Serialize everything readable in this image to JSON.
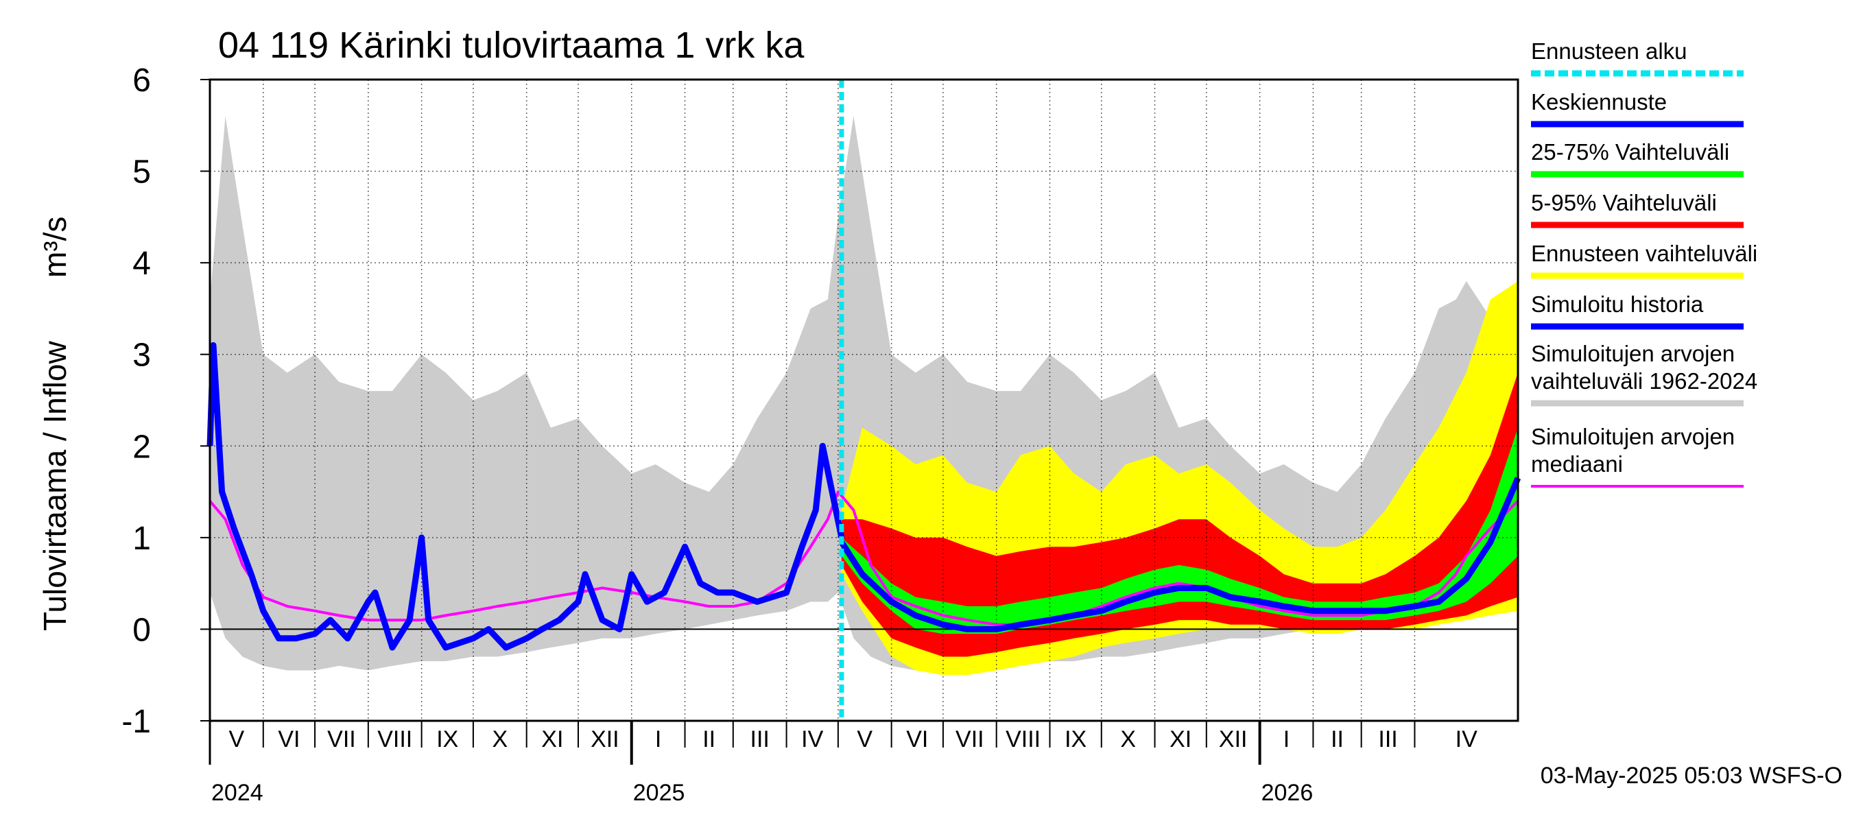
{
  "chart_data": {
    "type": "area",
    "title": "04 119 Kärinki tulovirtaama 1 vrk ka",
    "ylabel_left": "Tulovirtaama / Inflow",
    "ylabel_unit": "m³/s",
    "ylim": [
      -1,
      6
    ],
    "yticks": [
      "6",
      "5",
      "4",
      "3",
      "2",
      "1",
      "0",
      "-1"
    ],
    "grid": true,
    "legend_position": "right",
    "x_start": "2024-05-01",
    "x_end": "2026-05-31",
    "forecast_start": "2025-05-03",
    "months": [
      "V",
      "VI",
      "VII",
      "VIII",
      "IX",
      "X",
      "XI",
      "XII",
      "I",
      "II",
      "III",
      "IV",
      "V",
      "VI",
      "VII",
      "VIII",
      "IX",
      "X",
      "XI",
      "XII",
      "I",
      "II",
      "III",
      "IV"
    ],
    "years": [
      "2024",
      "2025",
      "2026"
    ],
    "legend": [
      {
        "label": "Ennusteen alku",
        "color": "#00e5ee"
      },
      {
        "label": "Keskiennuste",
        "color": "#0000ff"
      },
      {
        "label": "25-75% Vaihteluväli",
        "color": "#00ff00"
      },
      {
        "label": "5-95% Vaihteluväli",
        "color": "#ff0000"
      },
      {
        "label": "Ennusteen vaihteluväli",
        "color": "#ffff00"
      },
      {
        "label": "Simuloitu historia",
        "color": "#0000ff"
      },
      {
        "label": "Simuloitujen arvojen vaihteluväli 1962-2024",
        "color": "#cccccc"
      },
      {
        "label": "Simuloitujen arvojen mediaani",
        "color": "#ff00ff"
      }
    ],
    "series": [
      {
        "name": "Simuloitujen arvojen vaihteluväli 1962-2024",
        "x": [
          "2024-05-01",
          "2024-05-10",
          "2024-05-20",
          "2024-06-01",
          "2024-06-15",
          "2024-07-01",
          "2024-07-15",
          "2024-08-01",
          "2024-08-15",
          "2024-09-01",
          "2024-09-15",
          "2024-10-01",
          "2024-10-15",
          "2024-11-01",
          "2024-11-15",
          "2024-12-01",
          "2024-12-15",
          "2025-01-01",
          "2025-01-15",
          "2025-02-01",
          "2025-02-15",
          "2025-03-01",
          "2025-03-15",
          "2025-04-01",
          "2025-04-15",
          "2025-04-25",
          "2025-05-01",
          "2025-05-10",
          "2025-05-20",
          "2025-06-01",
          "2025-06-15",
          "2025-07-01",
          "2025-07-15",
          "2025-08-01",
          "2025-08-15",
          "2025-09-01",
          "2025-09-15",
          "2025-10-01",
          "2025-10-15",
          "2025-11-01",
          "2025-11-15",
          "2025-12-01",
          "2025-12-15",
          "2026-01-01",
          "2026-01-15",
          "2026-02-01",
          "2026-02-15",
          "2026-03-01",
          "2026-03-15",
          "2026-04-01",
          "2026-04-15",
          "2026-04-25",
          "2026-05-01",
          "2026-05-15",
          "2026-05-31"
        ],
        "low": [
          0.4,
          -0.1,
          -0.3,
          -0.4,
          -0.45,
          -0.45,
          -0.4,
          -0.45,
          -0.4,
          -0.35,
          -0.35,
          -0.3,
          -0.3,
          -0.25,
          -0.2,
          -0.15,
          -0.1,
          -0.1,
          -0.05,
          0.0,
          0.05,
          0.1,
          0.15,
          0.2,
          0.3,
          0.3,
          0.4,
          -0.1,
          -0.3,
          -0.4,
          -0.45,
          -0.45,
          -0.4,
          -0.45,
          -0.4,
          -0.35,
          -0.35,
          -0.3,
          -0.3,
          -0.25,
          -0.2,
          -0.15,
          -0.1,
          -0.1,
          -0.05,
          0.0,
          0.05,
          0.1,
          0.15,
          0.2,
          0.3,
          0.3,
          0.35,
          0.4,
          0.4
        ],
        "high": [
          3.6,
          5.6,
          4.4,
          3.0,
          2.8,
          3.0,
          2.7,
          2.6,
          2.6,
          3.0,
          2.8,
          2.5,
          2.6,
          2.8,
          2.2,
          2.3,
          2.0,
          1.7,
          1.8,
          1.6,
          1.5,
          1.8,
          2.3,
          2.8,
          3.5,
          3.6,
          4.5,
          5.6,
          4.4,
          3.0,
          2.8,
          3.0,
          2.7,
          2.6,
          2.6,
          3.0,
          2.8,
          2.5,
          2.6,
          2.8,
          2.2,
          2.3,
          2.0,
          1.7,
          1.8,
          1.6,
          1.5,
          1.8,
          2.3,
          2.8,
          3.5,
          3.6,
          3.8,
          3.4,
          2.6
        ]
      },
      {
        "name": "Ennusteen vaihteluväli",
        "x": [
          "2025-05-03",
          "2025-05-15",
          "2025-06-01",
          "2025-06-15",
          "2025-07-01",
          "2025-07-15",
          "2025-08-01",
          "2025-08-15",
          "2025-09-01",
          "2025-09-15",
          "2025-10-01",
          "2025-10-15",
          "2025-11-01",
          "2025-11-15",
          "2025-12-01",
          "2025-12-15",
          "2026-01-01",
          "2026-01-15",
          "2026-02-01",
          "2026-02-15",
          "2026-03-01",
          "2026-03-15",
          "2026-04-01",
          "2026-04-15",
          "2026-05-01",
          "2026-05-15",
          "2026-05-31"
        ],
        "low": [
          0.6,
          0.2,
          -0.3,
          -0.45,
          -0.5,
          -0.5,
          -0.45,
          -0.4,
          -0.35,
          -0.3,
          -0.2,
          -0.15,
          -0.1,
          -0.05,
          0.0,
          0.0,
          0.0,
          0.0,
          -0.05,
          -0.05,
          0.0,
          0.0,
          0.0,
          0.05,
          0.1,
          0.15,
          0.2
        ],
        "high": [
          1.3,
          2.2,
          2.0,
          1.8,
          1.9,
          1.6,
          1.5,
          1.9,
          2.0,
          1.7,
          1.5,
          1.8,
          1.9,
          1.7,
          1.8,
          1.6,
          1.3,
          1.1,
          0.9,
          0.9,
          1.0,
          1.3,
          1.8,
          2.2,
          2.8,
          3.6,
          3.8
        ]
      },
      {
        "name": "5-95% Vaihteluväli",
        "x": [
          "2025-05-03",
          "2025-05-15",
          "2025-06-01",
          "2025-06-15",
          "2025-07-01",
          "2025-07-15",
          "2025-08-01",
          "2025-08-15",
          "2025-09-01",
          "2025-09-15",
          "2025-10-01",
          "2025-10-15",
          "2025-11-01",
          "2025-11-15",
          "2025-12-01",
          "2025-12-15",
          "2026-01-01",
          "2026-01-15",
          "2026-02-01",
          "2026-02-15",
          "2026-03-01",
          "2026-03-15",
          "2026-04-01",
          "2026-04-15",
          "2026-05-01",
          "2026-05-15",
          "2026-05-31"
        ],
        "low": [
          0.7,
          0.3,
          -0.1,
          -0.2,
          -0.3,
          -0.3,
          -0.25,
          -0.2,
          -0.15,
          -0.1,
          -0.05,
          0.0,
          0.05,
          0.1,
          0.1,
          0.05,
          0.05,
          0.0,
          0.0,
          0.0,
          0.0,
          0.0,
          0.05,
          0.1,
          0.15,
          0.25,
          0.35
        ],
        "high": [
          1.2,
          1.2,
          1.1,
          1.0,
          1.0,
          0.9,
          0.8,
          0.85,
          0.9,
          0.9,
          0.95,
          1.0,
          1.1,
          1.2,
          1.2,
          1.0,
          0.8,
          0.6,
          0.5,
          0.5,
          0.5,
          0.6,
          0.8,
          1.0,
          1.4,
          1.9,
          2.8
        ]
      },
      {
        "name": "25-75% Vaihteluväli",
        "x": [
          "2025-05-03",
          "2025-05-15",
          "2025-06-01",
          "2025-06-15",
          "2025-07-01",
          "2025-07-15",
          "2025-08-01",
          "2025-08-15",
          "2025-09-01",
          "2025-09-15",
          "2025-10-01",
          "2025-10-15",
          "2025-11-01",
          "2025-11-15",
          "2025-12-01",
          "2025-12-15",
          "2026-01-01",
          "2026-01-15",
          "2026-02-01",
          "2026-02-15",
          "2026-03-01",
          "2026-03-15",
          "2026-04-01",
          "2026-04-15",
          "2026-05-01",
          "2026-05-15",
          "2026-05-31"
        ],
        "low": [
          0.8,
          0.5,
          0.2,
          0.0,
          -0.05,
          -0.05,
          -0.05,
          0.0,
          0.05,
          0.1,
          0.15,
          0.2,
          0.25,
          0.3,
          0.3,
          0.25,
          0.2,
          0.15,
          0.1,
          0.1,
          0.1,
          0.1,
          0.15,
          0.2,
          0.3,
          0.5,
          0.8
        ],
        "high": [
          1.0,
          0.8,
          0.5,
          0.35,
          0.3,
          0.25,
          0.25,
          0.3,
          0.35,
          0.4,
          0.45,
          0.55,
          0.65,
          0.7,
          0.65,
          0.55,
          0.45,
          0.35,
          0.3,
          0.3,
          0.3,
          0.35,
          0.4,
          0.5,
          0.8,
          1.3,
          2.2
        ]
      },
      {
        "name": "Simuloitujen arvojen mediaani",
        "x": [
          "2024-05-01",
          "2024-05-10",
          "2024-05-20",
          "2024-06-01",
          "2024-06-15",
          "2024-07-01",
          "2024-07-15",
          "2024-08-01",
          "2024-08-15",
          "2024-09-01",
          "2024-09-15",
          "2024-10-01",
          "2024-10-15",
          "2024-11-01",
          "2024-11-15",
          "2024-12-01",
          "2024-12-15",
          "2025-01-01",
          "2025-01-15",
          "2025-02-01",
          "2025-02-15",
          "2025-03-01",
          "2025-03-15",
          "2025-04-01",
          "2025-04-15",
          "2025-04-25",
          "2025-05-01",
          "2025-05-10",
          "2025-05-20",
          "2025-06-01",
          "2025-06-15",
          "2025-07-01",
          "2025-07-15",
          "2025-08-01",
          "2025-08-15",
          "2025-09-01",
          "2025-09-15",
          "2025-10-01",
          "2025-10-15",
          "2025-11-01",
          "2025-11-15",
          "2025-12-01",
          "2025-12-15",
          "2026-01-01",
          "2026-01-15",
          "2026-02-01",
          "2026-02-15",
          "2026-03-01",
          "2026-03-15",
          "2026-04-01",
          "2026-04-15",
          "2026-04-25",
          "2026-05-01",
          "2026-05-15",
          "2026-05-31"
        ],
        "values": [
          1.4,
          1.2,
          0.7,
          0.35,
          0.25,
          0.2,
          0.15,
          0.1,
          0.1,
          0.1,
          0.15,
          0.2,
          0.25,
          0.3,
          0.35,
          0.4,
          0.45,
          0.4,
          0.35,
          0.3,
          0.25,
          0.25,
          0.3,
          0.5,
          0.9,
          1.2,
          1.5,
          1.3,
          0.7,
          0.35,
          0.25,
          0.15,
          0.1,
          0.05,
          0.05,
          0.1,
          0.15,
          0.25,
          0.35,
          0.45,
          0.5,
          0.45,
          0.35,
          0.25,
          0.2,
          0.15,
          0.15,
          0.15,
          0.2,
          0.25,
          0.4,
          0.6,
          0.8,
          1.1,
          1.4
        ]
      },
      {
        "name": "Simuloitu historia",
        "x": [
          "2024-05-01",
          "2024-05-03",
          "2024-05-08",
          "2024-05-15",
          "2024-05-25",
          "2024-06-01",
          "2024-06-10",
          "2024-06-20",
          "2024-07-01",
          "2024-07-10",
          "2024-07-20",
          "2024-08-01",
          "2024-08-05",
          "2024-08-15",
          "2024-08-25",
          "2024-09-01",
          "2024-09-05",
          "2024-09-15",
          "2024-10-01",
          "2024-10-10",
          "2024-10-20",
          "2024-11-01",
          "2024-11-10",
          "2024-11-20",
          "2024-12-01",
          "2024-12-05",
          "2024-12-15",
          "2024-12-25",
          "2025-01-01",
          "2025-01-10",
          "2025-01-20",
          "2025-02-01",
          "2025-02-10",
          "2025-02-20",
          "2025-03-01",
          "2025-03-15",
          "2025-04-01",
          "2025-04-10",
          "2025-04-18",
          "2025-04-22",
          "2025-05-03"
        ],
        "values": [
          2.0,
          3.1,
          1.5,
          1.1,
          0.6,
          0.2,
          -0.1,
          -0.1,
          -0.05,
          0.1,
          -0.1,
          0.3,
          0.4,
          -0.2,
          0.1,
          1.0,
          0.1,
          -0.2,
          -0.1,
          0.0,
          -0.2,
          -0.1,
          0.0,
          0.1,
          0.3,
          0.6,
          0.1,
          0.0,
          0.6,
          0.3,
          0.4,
          0.9,
          0.5,
          0.4,
          0.4,
          0.3,
          0.4,
          0.9,
          1.3,
          2.0,
          1.0
        ]
      },
      {
        "name": "Keskiennuste",
        "x": [
          "2025-05-03",
          "2025-05-15",
          "2025-06-01",
          "2025-06-15",
          "2025-07-01",
          "2025-07-15",
          "2025-08-01",
          "2025-08-15",
          "2025-09-01",
          "2025-09-15",
          "2025-10-01",
          "2025-10-15",
          "2025-11-01",
          "2025-11-15",
          "2025-12-01",
          "2025-12-15",
          "2026-01-01",
          "2026-01-15",
          "2026-02-01",
          "2026-02-15",
          "2026-03-01",
          "2026-03-15",
          "2026-04-01",
          "2026-04-15",
          "2026-05-01",
          "2026-05-15",
          "2026-05-31"
        ],
        "values": [
          0.95,
          0.6,
          0.3,
          0.15,
          0.05,
          0.0,
          0.0,
          0.05,
          0.1,
          0.15,
          0.2,
          0.3,
          0.4,
          0.45,
          0.45,
          0.35,
          0.3,
          0.25,
          0.2,
          0.2,
          0.2,
          0.2,
          0.25,
          0.3,
          0.55,
          0.95,
          1.65
        ]
      }
    ]
  },
  "footer": "03-May-2025 05:03 WSFS-O"
}
